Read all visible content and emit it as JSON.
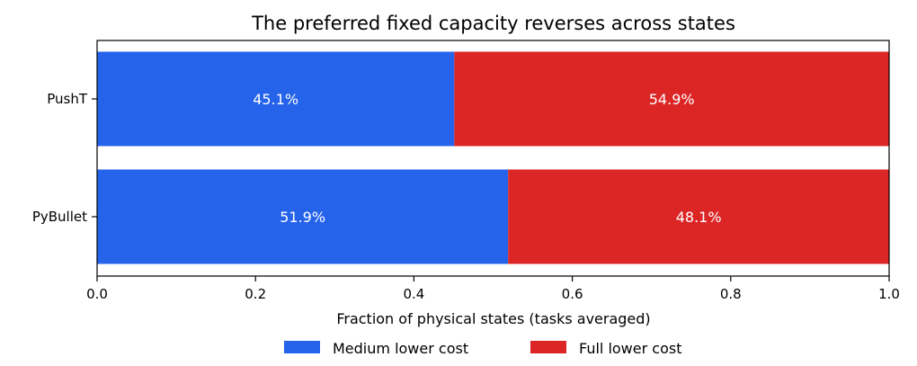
{
  "chart_data": {
    "type": "bar",
    "orientation": "horizontal",
    "stacked": true,
    "title": "The preferred fixed capacity reverses across states",
    "xlabel": "Fraction of physical states (tasks averaged)",
    "ylabel": "",
    "xlim": [
      0,
      1.0
    ],
    "xticks": [
      "0.0",
      "0.2",
      "0.4",
      "0.6",
      "0.8",
      "1.0"
    ],
    "categories": [
      "PushT",
      "PyBullet"
    ],
    "series": [
      {
        "name": "Medium lower cost",
        "color": "#2563eb",
        "values": [
          0.451,
          0.519
        ],
        "labels": [
          "45.1%",
          "51.9%"
        ]
      },
      {
        "name": "Full lower cost",
        "color": "#dc2626",
        "values": [
          0.549,
          0.481
        ],
        "labels": [
          "54.9%",
          "48.1%"
        ]
      }
    ],
    "grid": false,
    "legend_position": "bottom-center"
  }
}
